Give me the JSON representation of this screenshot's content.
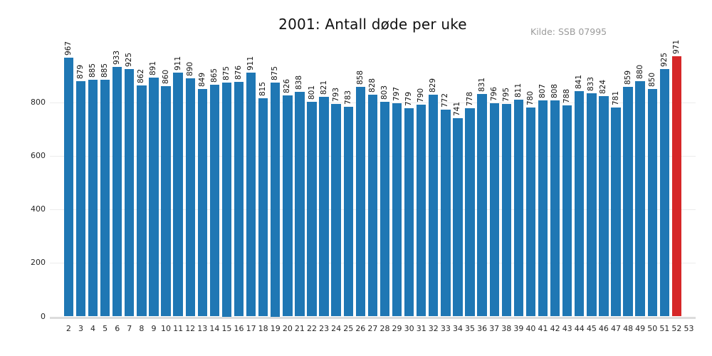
{
  "chart_data": {
    "type": "bar",
    "title": "2001: Antall døde per uke",
    "source_label": "Kilde: SSB 07995",
    "xlabel": "",
    "ylabel": "",
    "categories": [
      2,
      3,
      4,
      5,
      6,
      7,
      8,
      9,
      10,
      11,
      12,
      13,
      14,
      15,
      16,
      17,
      18,
      19,
      20,
      21,
      22,
      23,
      24,
      25,
      26,
      27,
      28,
      29,
      30,
      31,
      32,
      33,
      34,
      35,
      36,
      37,
      38,
      39,
      40,
      41,
      42,
      43,
      44,
      45,
      46,
      47,
      48,
      49,
      50,
      51,
      52,
      53
    ],
    "values": [
      967,
      879,
      885,
      885,
      933,
      925,
      862,
      891,
      860,
      911,
      890,
      849,
      865,
      875,
      876,
      911,
      815,
      875,
      826,
      838,
      801,
      821,
      793,
      783,
      858,
      828,
      803,
      797,
      779,
      790,
      829,
      772,
      741,
      778,
      831,
      796,
      795,
      811,
      780,
      807,
      808,
      788,
      841,
      833,
      824,
      781,
      859,
      880,
      850,
      925,
      971,
      null
    ],
    "highlight_category": 52,
    "colors": {
      "bar": "#1f77b4",
      "highlight": "#d62728",
      "gridline": "#ececec",
      "axis_line": "#dcdcdc",
      "tick_text": "#262626",
      "source_text": "#9b9b9b"
    },
    "yticks": [
      0,
      200,
      400,
      600,
      800
    ],
    "ylim": [
      0,
      1000
    ],
    "grid": true,
    "value_labels_rotated": true,
    "legend": "none"
  }
}
